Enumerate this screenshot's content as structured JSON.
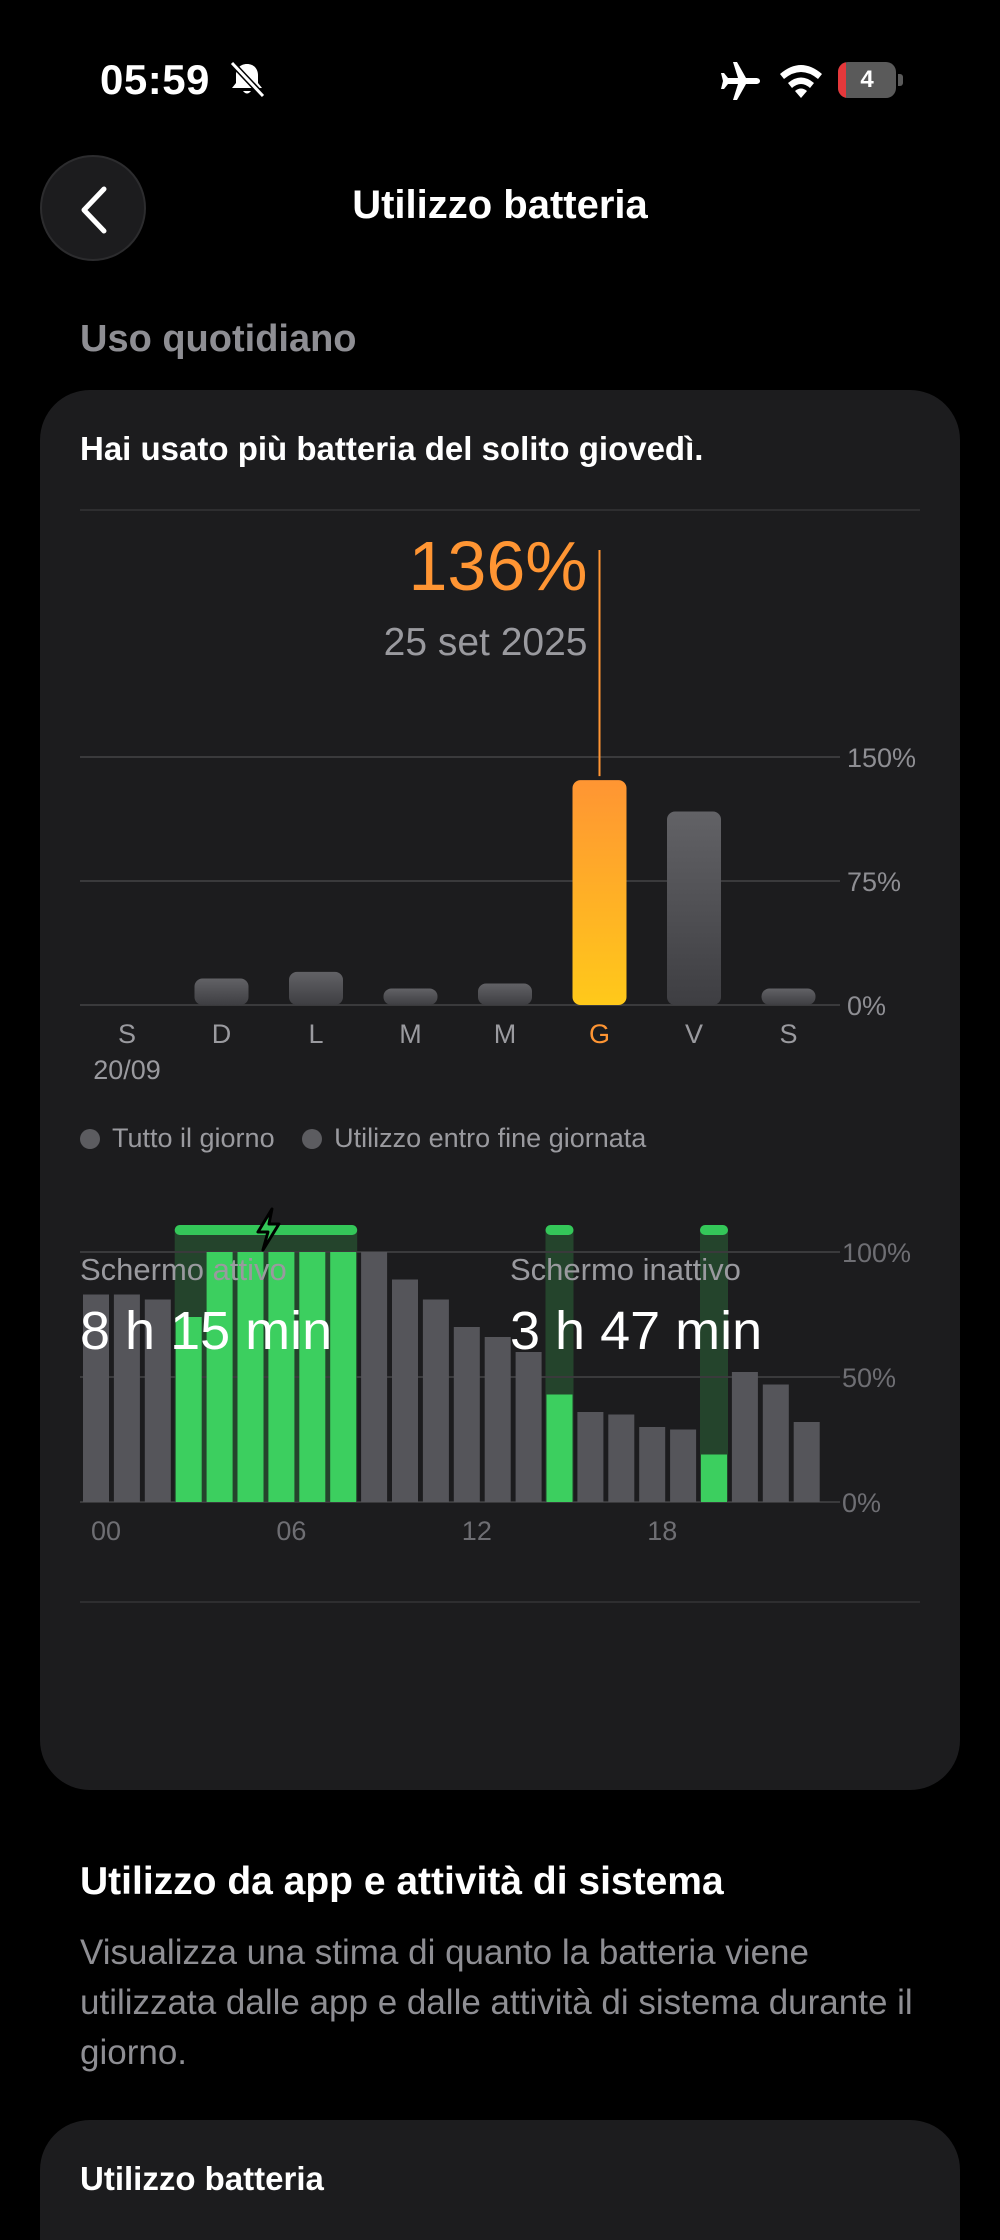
{
  "status_bar": {
    "time": "05:59",
    "battery_level": "4",
    "icons": [
      "bell-off-icon",
      "airplane-icon",
      "wifi-icon",
      "battery-icon"
    ]
  },
  "header": {
    "title": "Utilizzo batteria",
    "back_icon": "chevron-left-icon"
  },
  "daily_section": {
    "label": "Uso quotidiano",
    "headline": "Hai usato più batteria del solito giovedì."
  },
  "legend": {
    "all_day": "Tutto il giorno",
    "end_of_day": "Utilizzo entro fine giornata"
  },
  "screen": {
    "active_label": "Schermo attivo",
    "active_value": "8 h 15 min",
    "inactive_label": "Schermo inattivo",
    "inactive_value": "3 h 47 min"
  },
  "apps_section": {
    "title": "Utilizzo da app e attività di sistema",
    "description": "Visualizza una stima di quanto la batteria viene utilizzata dalle app e dalle attività di sistema durante il giorno."
  },
  "next_card": {
    "title": "Utilizzo batteria"
  },
  "colors": {
    "background": "#000000",
    "card": "#1c1c1e",
    "highlight_top": "#ff9533",
    "highlight_bottom": "#ffc91a",
    "bar_gray": "#5c5c60",
    "charge_green": "#34c759",
    "secondary_text": "#8e8e93"
  },
  "chart_data": [
    {
      "type": "bar",
      "categories": [
        "S",
        "D",
        "L",
        "M",
        "M",
        "G",
        "V",
        "S"
      ],
      "sub_labels": [
        "20/09",
        "",
        "",
        "",
        "",
        "",
        "",
        ""
      ],
      "values": [
        0,
        16,
        20,
        10,
        13,
        136,
        117,
        10
      ],
      "highlight_index": 5,
      "highlight_value_label": "136%",
      "highlight_date_label": "25 set 2025",
      "ylim": [
        0,
        150
      ],
      "yticks": [
        0,
        75,
        150
      ],
      "ytick_labels": [
        "0%",
        "75%",
        "150%"
      ],
      "grid": true
    },
    {
      "type": "bar",
      "series": [
        {
          "name": "Tutto il giorno",
          "values": [
            83,
            83,
            81,
            74,
            100,
            100,
            100,
            100,
            100,
            100,
            89,
            81,
            70,
            66,
            60,
            43,
            36,
            35,
            30,
            29,
            19,
            52,
            47,
            32
          ]
        }
      ],
      "charging_indices": [
        3,
        4,
        5,
        6,
        7,
        8,
        15,
        20
      ],
      "charging_periods": [
        [
          3,
          8
        ],
        [
          15,
          15
        ],
        [
          20,
          20
        ]
      ],
      "xtick_labels": [
        "00",
        "06",
        "12",
        "18"
      ],
      "xtick_indices": [
        0,
        6,
        12,
        18
      ],
      "ylim": [
        0,
        100
      ],
      "yticks": [
        0,
        50,
        100
      ],
      "ytick_labels": [
        "0%",
        "50%",
        "100%"
      ],
      "grid": true
    }
  ]
}
